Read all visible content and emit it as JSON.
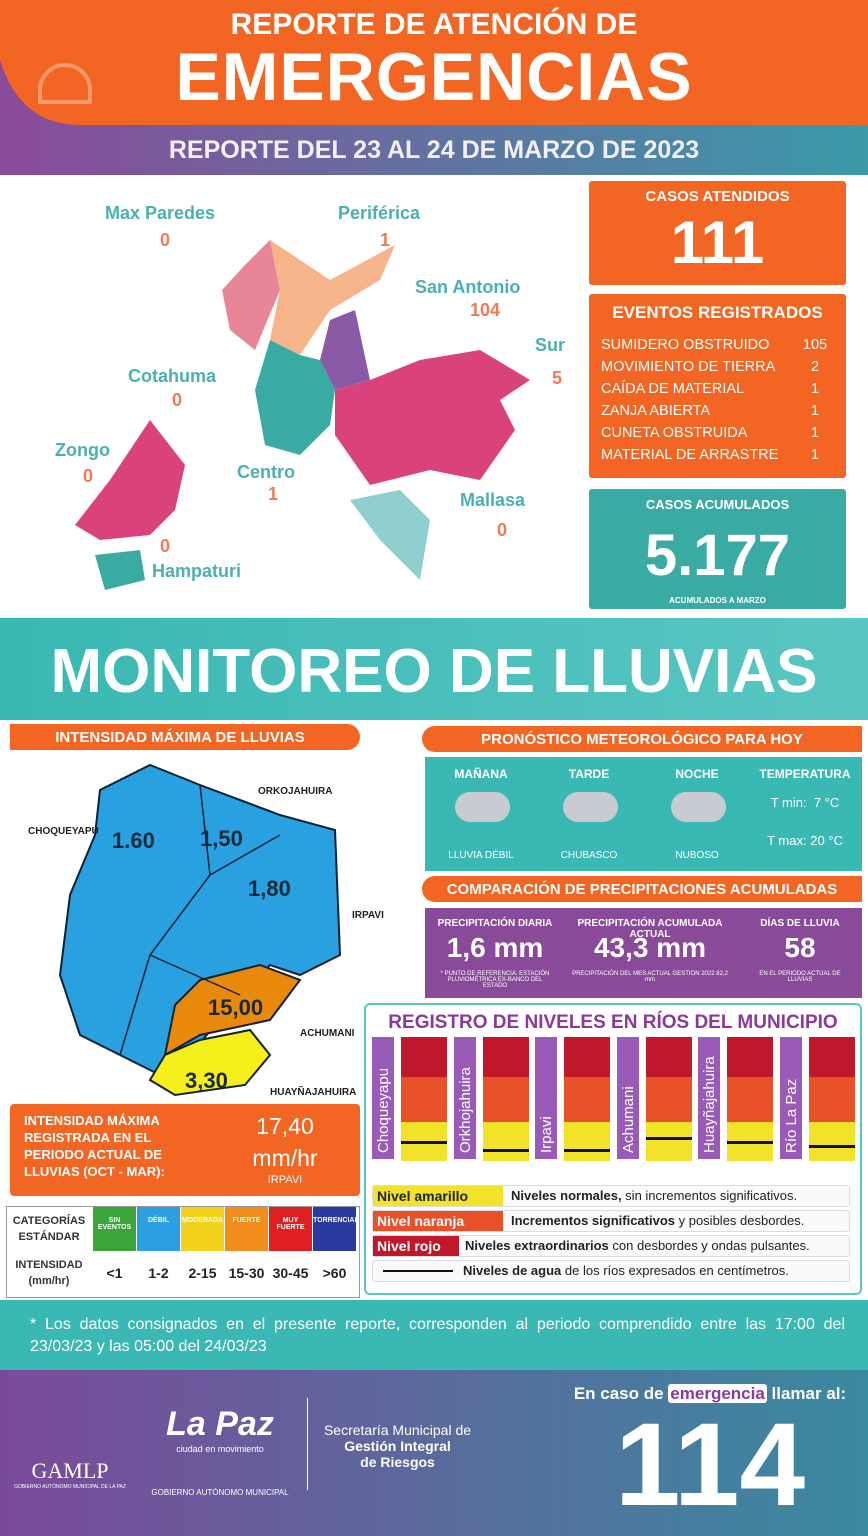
{
  "header": {
    "title_top": "REPORTE DE ATENCIÓN DE",
    "title": "EMERGENCIAS",
    "date": "REPORTE DEL 23 AL 24 DE MARZO DE 2023"
  },
  "districts": [
    {
      "name": "Max Paredes",
      "value": 0
    },
    {
      "name": "Periférica",
      "value": 1
    },
    {
      "name": "San Antonio",
      "value": 104
    },
    {
      "name": "Sur",
      "value": 5
    },
    {
      "name": "Cotahuma",
      "value": 0
    },
    {
      "name": "Zongo",
      "value": 0
    },
    {
      "name": "Centro",
      "value": 1
    },
    {
      "name": "Mallasa",
      "value": 0
    },
    {
      "name": "Hampaturi",
      "value": 0
    }
  ],
  "cases": {
    "label": "CASOS ATENDIDOS",
    "value": 111
  },
  "events": {
    "title": "EVENTOS REGISTRADOS",
    "items": [
      {
        "name": "SUMIDERO OBSTRUIDO",
        "value": 105
      },
      {
        "name": "MOVIMIENTO DE TIERRA",
        "value": 2
      },
      {
        "name": "CAÍDA DE MATERIAL",
        "value": 1
      },
      {
        "name": "ZANJA ABIERTA",
        "value": 1
      },
      {
        "name": "CUNETA OBSTRUIDA",
        "value": 1
      },
      {
        "name": "MATERIAL DE ARRASTRE",
        "value": 1
      }
    ]
  },
  "accumulated": {
    "label": "CASOS ACUMULADOS",
    "value": "5.177",
    "note": "ACUMULADOS A MARZO"
  },
  "section_title": "MONITOREO DE LLUVIAS",
  "intensity": {
    "title": "INTENSIDAD MÁXIMA DE LLUVIAS",
    "stations": [
      {
        "name": "CHOQUEYAPU",
        "value": "1.60"
      },
      {
        "name": "ORKOJAHUIRA",
        "value": "1,50"
      },
      {
        "name": "IRPAVI",
        "value": "1,80"
      },
      {
        "name": "ACHUMANI",
        "value": "15,00"
      },
      {
        "name": "HUAYÑAJAHUIRA",
        "value": "3,30"
      }
    ],
    "max_label": "INTENSIDAD MÁXIMA REGISTRADA EN EL PERIODO ACTUAL DE LLUVIAS (OCT - MAR):",
    "max_value": "17,40",
    "max_unit": "mm/hr",
    "max_station": "IRPAVI"
  },
  "categories": {
    "header": "CATEGORÍAS ESTÁNDAR",
    "row_label": "INTENSIDAD (mm/hr)",
    "columns": [
      {
        "name": "SIN EVENTOS",
        "range": "<1",
        "color": "#3aa53a"
      },
      {
        "name": "DÉBIL",
        "range": "1-2",
        "color": "#2c9fe0"
      },
      {
        "name": "MODERADA",
        "range": "2-15",
        "color": "#f3d21b"
      },
      {
        "name": "FUERTE",
        "range": "15-30",
        "color": "#f28c1b"
      },
      {
        "name": "MUY FUERTE",
        "range": "30-45",
        "color": "#e02020"
      },
      {
        "name": "TORRENCIAL",
        "range": ">60",
        "color": "#2b3a9e"
      }
    ]
  },
  "forecast": {
    "title": "PRONÓSTICO METEOROLÓGICO PARA HOY",
    "periods": [
      {
        "name": "MAÑANA",
        "condition": "LLUVIA DÉBIL"
      },
      {
        "name": "TARDE",
        "condition": "CHUBASCO"
      },
      {
        "name": "NOCHE",
        "condition": "NUBOSO"
      }
    ],
    "temperature": {
      "title": "TEMPERATURA",
      "min": "T min:  7 °C",
      "max": "T max: 20 °C"
    }
  },
  "comparison": {
    "title": "COMPARACIÓN DE PRECIPITACIONES ACUMULADAS",
    "items": [
      {
        "label": "PRECIPITACIÓN DIARIA",
        "value": "1,6 mm",
        "note": "* PUNTO DE REFERENCIA: ESTACIÓN PLUVIOMÉTRICA EX-BANCO DEL ESTADO"
      },
      {
        "label": "PRECIPITACIÓN ACUMULADA ACTUAL",
        "value": "43,3 mm",
        "note": "PRECIPITACIÓN DEL MES ACTUAL GESTION 2022 82,2 mm"
      },
      {
        "label": "DÍAS DE LLUVIA",
        "value": "58",
        "note": "EN EL PERIODO ACTUAL DE LLUVIAS"
      }
    ]
  },
  "rivers": {
    "title": "REGISTRO DE NIVELES EN RÍOS DEL MUNICIPIO",
    "names": [
      "Choqueyapu",
      "Orkhojahuira",
      "Irpavi",
      "Achumani",
      "Huayñajahuira",
      "Río La Paz"
    ],
    "legend": [
      {
        "label": "Nivel amarillo",
        "bold": "Niveles normales,",
        "text": " sin incrementos significativos."
      },
      {
        "label": "Nivel naranja",
        "bold": "Incrementos significativos",
        "text": " y posibles desbordes."
      },
      {
        "label": "Nivel rojo",
        "bold": "Niveles extraordinarios",
        "text": " con desbordes y ondas pulsantes."
      },
      {
        "label": null,
        "bold": "Niveles de agua",
        "text": " de los ríos expresados en centímetros."
      }
    ]
  },
  "footnote": "* Los datos consignados en el presente reporte, corresponden al periodo comprendido entre las 17:00 del 23/03/23 y las 05:00 del 24/03/23",
  "footer": {
    "gamlp": "GAMLP",
    "gamlp_sub": "GOBIERNO AUTÓNOMO MUNICIPAL DE LA PAZ",
    "lapaz": "La Paz",
    "lapaz_tag": "ciudad en movimiento",
    "lapaz_sub": "GOBIERNO AUTÓNOMO MUNICIPAL",
    "secretaria": [
      "Secretaría Municipal de",
      "Gestión Integral",
      "de Riesgos"
    ],
    "call_pre": "En caso de ",
    "call_em": "emergencia",
    "call_post": " llamar al:",
    "phone": "114"
  }
}
